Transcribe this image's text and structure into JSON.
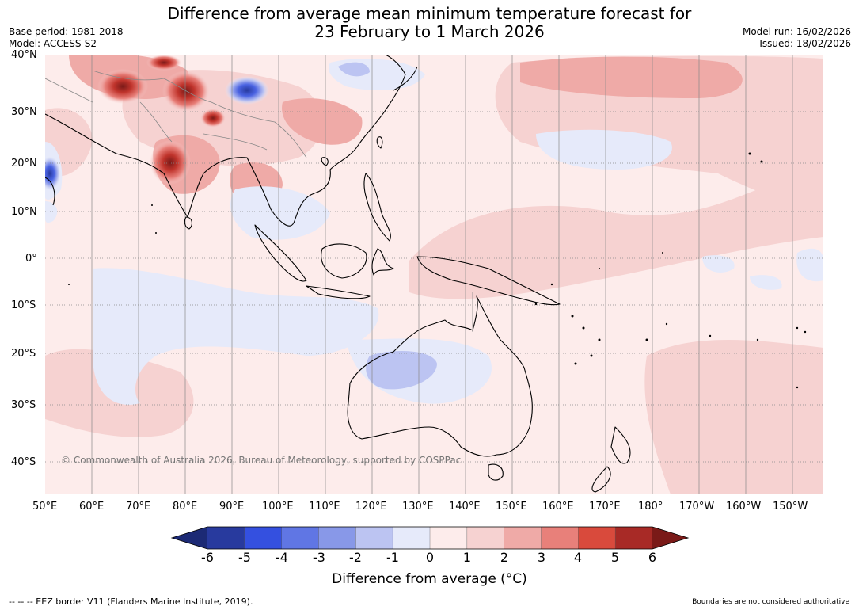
{
  "title": {
    "line1": "Difference from average mean minimum temperature forecast for",
    "line2": "23 February to 1 March 2026"
  },
  "meta": {
    "base_period": "Base period: 1981-2018",
    "model": "Model: ACCESS-S2",
    "model_run": "Model run: 16/02/2026",
    "issued": "Issued: 18/02/2026"
  },
  "map": {
    "lat_labels": [
      "40°N",
      "30°N",
      "20°N",
      "10°N",
      "0°",
      "10°S",
      "20°S",
      "30°S",
      "40°S"
    ],
    "lon_labels": [
      "50°E",
      "60°E",
      "70°E",
      "80°E",
      "90°E",
      "100°E",
      "110°E",
      "120°E",
      "130°E",
      "140°E",
      "150°E",
      "160°E",
      "170°E",
      "180°",
      "170°W",
      "160°W",
      "150°W"
    ],
    "copyright": "© Commonwealth of Australia 2026, Bureau of Meteorology, supported by COSPPac"
  },
  "colorbar": {
    "ticks": [
      "-6",
      "-5",
      "-4",
      "-3",
      "-2",
      "-1",
      "0",
      "1",
      "2",
      "3",
      "4",
      "5",
      "6"
    ],
    "colors": [
      "#283a9e",
      "#3450e0",
      "#6076e4",
      "#8898e8",
      "#bcc4f2",
      "#e6eafa",
      "#fdeceb",
      "#f6d2d1",
      "#efaaa7",
      "#e8807a",
      "#d94a3c",
      "#a82a26"
    ],
    "under_color": "#1c2a75",
    "over_color": "#7a1a18",
    "label": "Difference from average (°C)"
  },
  "footer": {
    "eez": "--  --  -- EEZ border V11 (Flanders Marine Institute, 2019).",
    "disclaimer": "Boundaries are not considered authoritative"
  }
}
